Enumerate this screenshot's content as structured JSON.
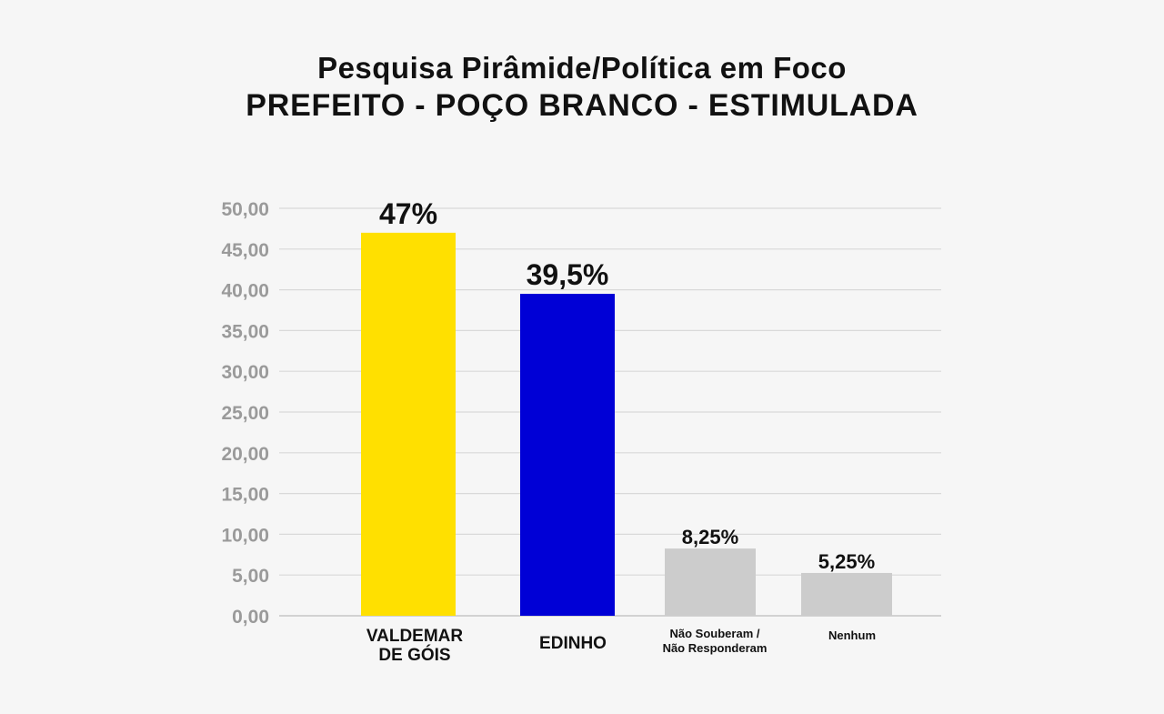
{
  "header": {
    "title_line1": "Pesquisa Pirâmide/Política em Foco",
    "title_line2": "PREFEITO - POÇO BRANCO - ESTIMULADA"
  },
  "chart_data": {
    "type": "bar",
    "title": "Pesquisa Pirâmide/Política em Foco — PREFEITO - POÇO BRANCO - ESTIMULADA",
    "categories": [
      [
        "VALDEMAR",
        "DE GÓIS"
      ],
      [
        "EDINHO"
      ],
      [
        "Não Souberam /",
        "Não Responderam"
      ],
      [
        "Nenhum"
      ]
    ],
    "values": [
      47,
      39.5,
      8.25,
      5.25
    ],
    "value_labels": [
      "47%",
      "39,5%",
      "8,25%",
      "5,25%"
    ],
    "colors": [
      "#ffe000",
      "#0000d6",
      "#cccccc",
      "#cccccc"
    ],
    "ylim": [
      0,
      50
    ],
    "yticks": [
      "0,00",
      "5,00",
      "10,00",
      "15,00",
      "20,00",
      "25,00",
      "30,00",
      "35,00",
      "40,00",
      "45,00",
      "50,00"
    ],
    "grid": true,
    "xlabel": "",
    "ylabel": ""
  }
}
